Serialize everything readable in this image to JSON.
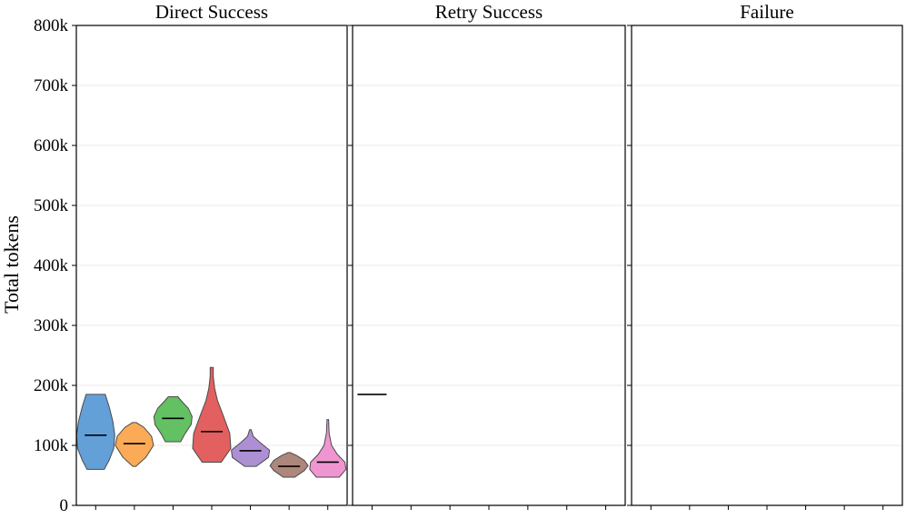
{
  "chart_data": {
    "type": "violin",
    "ylabel": "Total tokens",
    "ylim": [
      0,
      800000
    ],
    "yticks": [
      0,
      100000,
      200000,
      300000,
      400000,
      500000,
      600000,
      700000,
      800000
    ],
    "ytick_labels": [
      "0",
      "100k",
      "200k",
      "300k",
      "400k",
      "500k",
      "600k",
      "700k",
      "800k"
    ],
    "grid": true,
    "panels": [
      {
        "title": "Direct Success",
        "series": [
          {
            "color": "#5b9bd5",
            "min": 60000,
            "max": 185000,
            "median": 117000,
            "profile": [
              [
                60000,
                0.45
              ],
              [
                75000,
                0.7
              ],
              [
                95000,
                0.95
              ],
              [
                117000,
                1.0
              ],
              [
                140000,
                0.9
              ],
              [
                165000,
                0.7
              ],
              [
                185000,
                0.5
              ]
            ]
          },
          {
            "color": "#fba54e",
            "min": 65000,
            "max": 138000,
            "median": 103000,
            "profile": [
              [
                65000,
                0.08
              ],
              [
                80000,
                0.6
              ],
              [
                100000,
                1.0
              ],
              [
                115000,
                0.9
              ],
              [
                130000,
                0.5
              ],
              [
                138000,
                0.1
              ]
            ]
          },
          {
            "color": "#5bbd5b",
            "min": 106000,
            "max": 181000,
            "median": 145000,
            "profile": [
              [
                106000,
                0.4
              ],
              [
                118000,
                0.6
              ],
              [
                135000,
                0.95
              ],
              [
                148000,
                1.0
              ],
              [
                162000,
                0.8
              ],
              [
                172000,
                0.5
              ],
              [
                181000,
                0.25
              ]
            ]
          },
          {
            "color": "#e05757",
            "min": 72000,
            "max": 230000,
            "median": 123000,
            "profile": [
              [
                72000,
                0.5
              ],
              [
                95000,
                1.0
              ],
              [
                120000,
                0.95
              ],
              [
                150000,
                0.6
              ],
              [
                175000,
                0.3
              ],
              [
                195000,
                0.15
              ],
              [
                215000,
                0.08
              ],
              [
                230000,
                0.08
              ]
            ]
          },
          {
            "color": "#a989d1",
            "min": 65000,
            "max": 126000,
            "median": 91000,
            "profile": [
              [
                65000,
                0.3
              ],
              [
                80000,
                0.95
              ],
              [
                92000,
                1.0
              ],
              [
                105000,
                0.5
              ],
              [
                115000,
                0.15
              ],
              [
                126000,
                0.04
              ]
            ]
          },
          {
            "color": "#a97f75",
            "min": 47000,
            "max": 88000,
            "median": 65000,
            "profile": [
              [
                47000,
                0.3
              ],
              [
                58000,
                0.8
              ],
              [
                66000,
                1.0
              ],
              [
                75000,
                0.8
              ],
              [
                83000,
                0.4
              ],
              [
                88000,
                0.05
              ]
            ]
          },
          {
            "color": "#ee90cf",
            "min": 47000,
            "max": 143000,
            "median": 72000,
            "profile": [
              [
                47000,
                0.6
              ],
              [
                60000,
                0.95
              ],
              [
                72000,
                0.9
              ],
              [
                85000,
                0.5
              ],
              [
                100000,
                0.2
              ],
              [
                120000,
                0.07
              ],
              [
                143000,
                0.04
              ]
            ]
          }
        ]
      },
      {
        "title": "Retry Success",
        "series": [
          {
            "color": "#a989d1",
            "min": 185000,
            "max": 185000,
            "median": 185000,
            "profile": []
          }
        ]
      },
      {
        "title": "Failure",
        "series": []
      }
    ]
  }
}
